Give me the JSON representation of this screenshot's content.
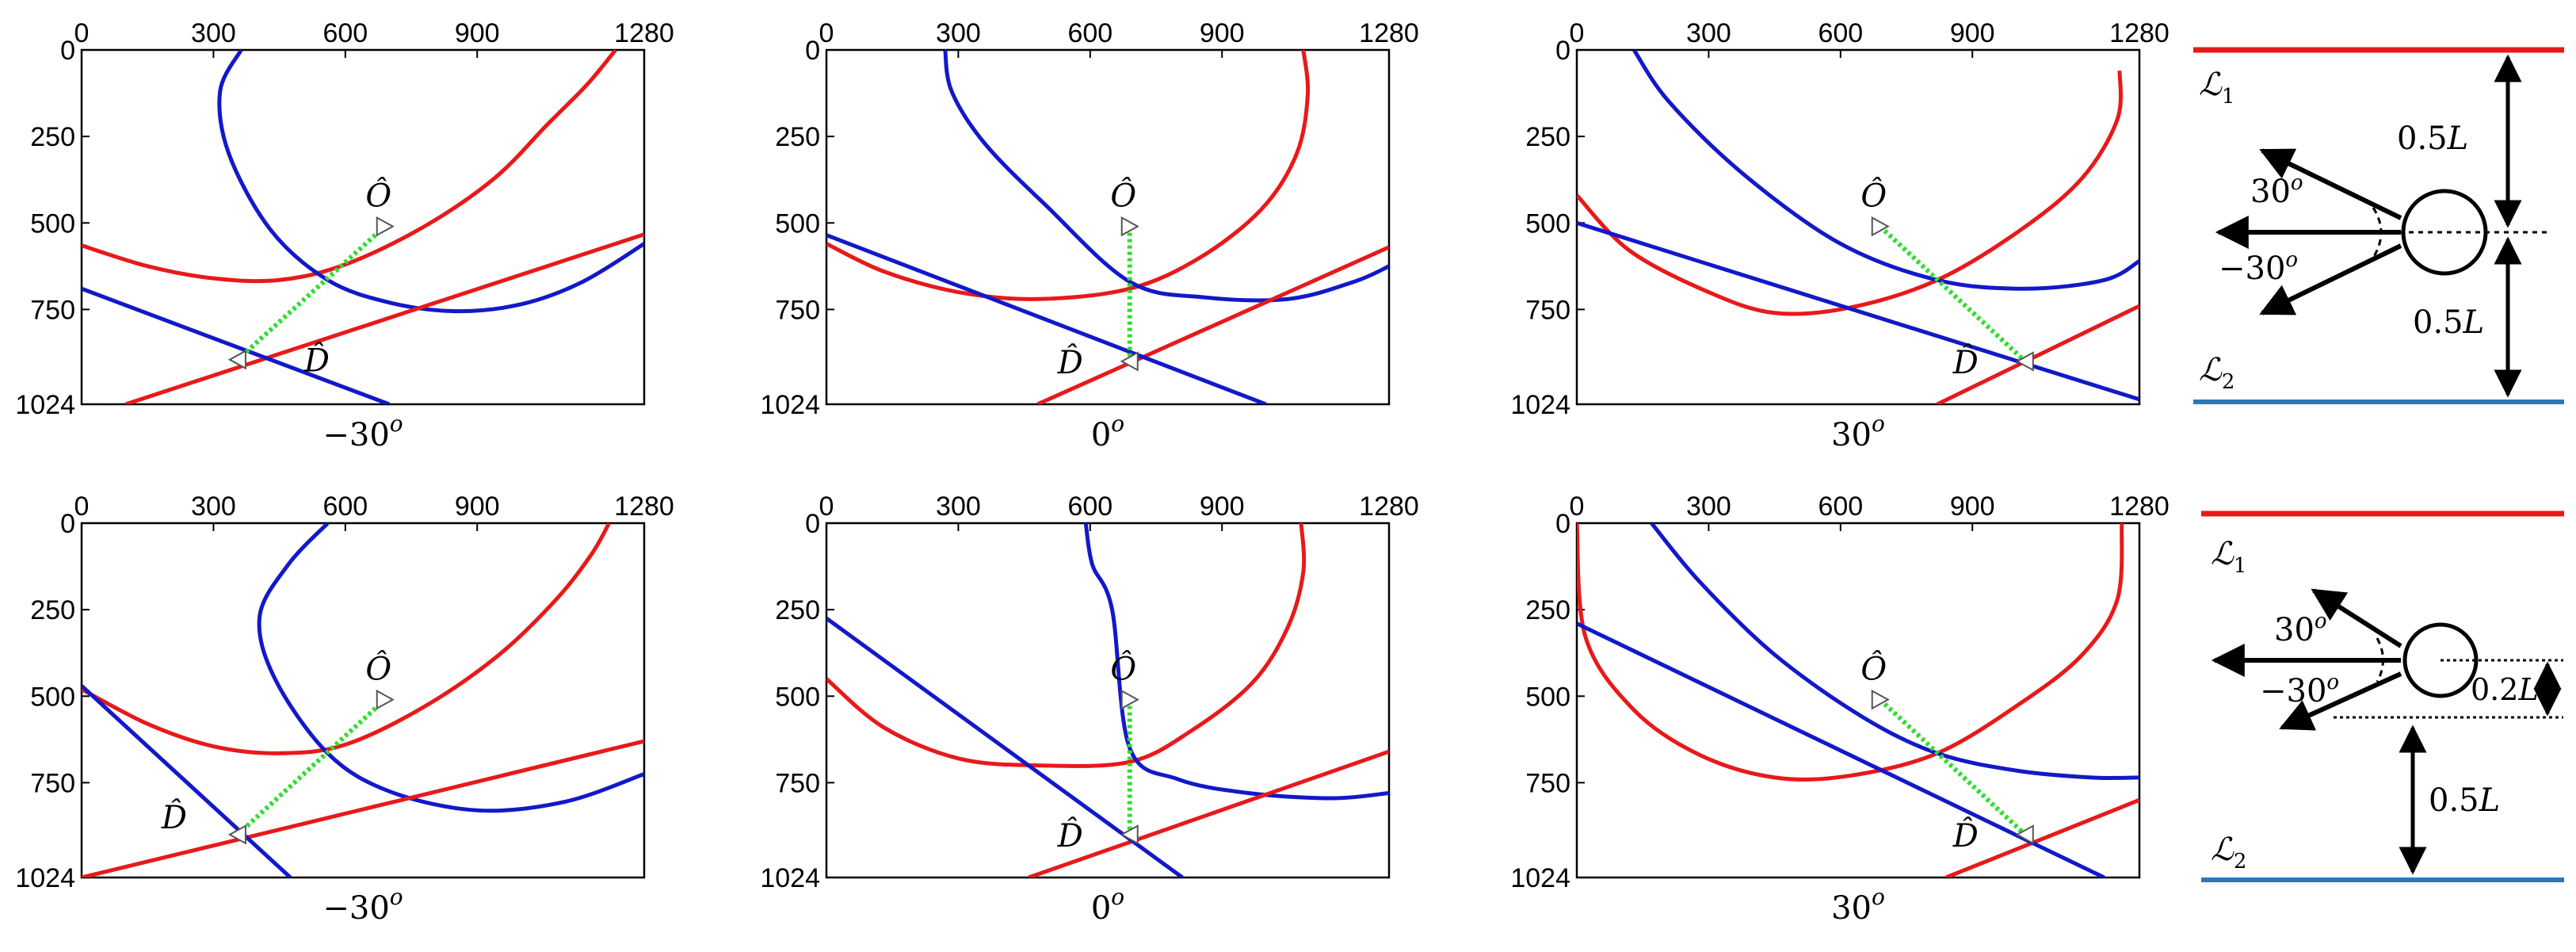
{
  "figure": {
    "x_ticks": [
      "0",
      "300",
      "600",
      "900",
      "1280"
    ],
    "y_ticks": [
      "0",
      "250",
      "500",
      "750",
      "1024"
    ],
    "o_label": "Ô",
    "d_label": "D̂",
    "colors": {
      "red": "#e8191a",
      "blue": "#1219c8",
      "green": "#2ede2e",
      "blue_line": "#2f78b4"
    },
    "plots": [
      {
        "caption_num": "−30",
        "caption_sup": "o",
        "o": [
          690,
          510
        ],
        "d": [
          355,
          895
        ],
        "mid": [
          570,
          665
        ],
        "red_curve": [
          [
            0,
            565
          ],
          [
            150,
            625
          ],
          [
            300,
            660
          ],
          [
            450,
            665
          ],
          [
            600,
            620
          ],
          [
            780,
            510
          ],
          [
            940,
            370
          ],
          [
            1060,
            215
          ],
          [
            1150,
            100
          ],
          [
            1215,
            0
          ]
        ],
        "red_line": [
          [
            100,
            1024
          ],
          [
            1280,
            533
          ]
        ],
        "blue_curve": [
          [
            363,
            0
          ],
          [
            315,
            120
          ],
          [
            335,
            300
          ],
          [
            430,
            520
          ],
          [
            560,
            665
          ],
          [
            700,
            730
          ],
          [
            850,
            755
          ],
          [
            1000,
            735
          ],
          [
            1140,
            670
          ],
          [
            1280,
            560
          ]
        ],
        "blue_line": [
          [
            0,
            690
          ],
          [
            700,
            1024
          ]
        ]
      },
      {
        "caption_num": "0",
        "caption_sup": "o",
        "o": [
          690,
          510
        ],
        "d": [
          690,
          900
        ],
        "mid": [
          690,
          690
        ],
        "red_curve": [
          [
            0,
            560
          ],
          [
            130,
            640
          ],
          [
            300,
            700
          ],
          [
            480,
            720
          ],
          [
            690,
            690
          ],
          [
            850,
            600
          ],
          [
            990,
            460
          ],
          [
            1070,
            300
          ],
          [
            1095,
            130
          ],
          [
            1085,
            0
          ]
        ],
        "red_line": [
          [
            480,
            1024
          ],
          [
            1280,
            570
          ]
        ],
        "blue_curve": [
          [
            270,
            0
          ],
          [
            285,
            120
          ],
          [
            360,
            270
          ],
          [
            500,
            450
          ],
          [
            690,
            670
          ],
          [
            860,
            715
          ],
          [
            1050,
            720
          ],
          [
            1200,
            670
          ],
          [
            1280,
            625
          ]
        ],
        "blue_line": [
          [
            0,
            535
          ],
          [
            1000,
            1024
          ]
        ]
      },
      {
        "caption_num": "30",
        "caption_sup": "o",
        "o": [
          690,
          510
        ],
        "d": [
          1020,
          900
        ],
        "mid": [
          820,
          665
        ],
        "red_curve": [
          [
            0,
            420
          ],
          [
            120,
            580
          ],
          [
            300,
            700
          ],
          [
            450,
            760
          ],
          [
            620,
            745
          ],
          [
            820,
            665
          ],
          [
            1010,
            520
          ],
          [
            1150,
            370
          ],
          [
            1230,
            200
          ],
          [
            1235,
            60
          ]
        ],
        "red_line": [
          [
            820,
            1024
          ],
          [
            1280,
            740
          ]
        ],
        "blue_curve": [
          [
            130,
            0
          ],
          [
            210,
            150
          ],
          [
            380,
            360
          ],
          [
            600,
            560
          ],
          [
            820,
            665
          ],
          [
            1020,
            690
          ],
          [
            1200,
            665
          ],
          [
            1280,
            610
          ]
        ],
        "blue_line": [
          [
            0,
            500
          ],
          [
            1280,
            1010
          ]
        ]
      },
      {
        "caption_num": "−30",
        "caption_sup": "o",
        "o": [
          690,
          510
        ],
        "d": [
          355,
          900
        ],
        "mid": [
          570,
          665
        ],
        "red_curve": [
          [
            0,
            480
          ],
          [
            150,
            580
          ],
          [
            300,
            645
          ],
          [
            450,
            665
          ],
          [
            600,
            640
          ],
          [
            780,
            530
          ],
          [
            950,
            380
          ],
          [
            1080,
            220
          ],
          [
            1160,
            90
          ],
          [
            1200,
            0
          ]
        ],
        "red_line": [
          [
            0,
            1024
          ],
          [
            1280,
            630
          ]
        ],
        "blue_curve": [
          [
            560,
            0
          ],
          [
            470,
            120
          ],
          [
            405,
            270
          ],
          [
            440,
            450
          ],
          [
            560,
            665
          ],
          [
            700,
            775
          ],
          [
            900,
            830
          ],
          [
            1100,
            805
          ],
          [
            1280,
            725
          ]
        ],
        "blue_line": [
          [
            0,
            470
          ],
          [
            475,
            1024
          ]
        ]
      },
      {
        "caption_num": "0",
        "caption_sup": "o",
        "o": [
          690,
          510
        ],
        "d": [
          690,
          900
        ],
        "mid": [
          690,
          690
        ],
        "red_curve": [
          [
            0,
            450
          ],
          [
            130,
            590
          ],
          [
            300,
            680
          ],
          [
            480,
            700
          ],
          [
            690,
            690
          ],
          [
            830,
            600
          ],
          [
            970,
            460
          ],
          [
            1050,
            300
          ],
          [
            1085,
            140
          ],
          [
            1080,
            0
          ]
        ],
        "red_line": [
          [
            460,
            1024
          ],
          [
            1280,
            660
          ]
        ],
        "blue_curve": [
          [
            590,
            0
          ],
          [
            605,
            120
          ],
          [
            650,
            250
          ],
          [
            690,
            650
          ],
          [
            800,
            740
          ],
          [
            960,
            780
          ],
          [
            1150,
            795
          ],
          [
            1280,
            780
          ]
        ],
        "blue_line": [
          [
            0,
            275
          ],
          [
            810,
            1024
          ]
        ]
      },
      {
        "caption_num": "30",
        "caption_sup": "o",
        "o": [
          690,
          510
        ],
        "d": [
          1020,
          900
        ],
        "mid": [
          820,
          665
        ],
        "red_curve": [
          [
            0,
            0
          ],
          [
            20,
            330
          ],
          [
            130,
            540
          ],
          [
            280,
            670
          ],
          [
            450,
            735
          ],
          [
            620,
            730
          ],
          [
            820,
            665
          ],
          [
            1010,
            520
          ],
          [
            1150,
            380
          ],
          [
            1230,
            220
          ],
          [
            1240,
            0
          ]
        ],
        "red_line": [
          [
            840,
            1024
          ],
          [
            1280,
            800
          ]
        ],
        "blue_curve": [
          [
            170,
            0
          ],
          [
            280,
            170
          ],
          [
            450,
            380
          ],
          [
            650,
            560
          ],
          [
            820,
            665
          ],
          [
            1000,
            715
          ],
          [
            1170,
            735
          ],
          [
            1280,
            735
          ]
        ],
        "blue_line": [
          [
            0,
            290
          ],
          [
            1200,
            1024
          ]
        ]
      }
    ]
  },
  "schematics": [
    {
      "l1": "ℒ",
      "l1_sub": "1",
      "l2": "ℒ",
      "l2_sub": "2",
      "angle_pos": "30",
      "angle_neg": "−30",
      "angle_sup": "o",
      "dist_top": "0.5",
      "dist_bottom": "0.5",
      "dist_unit": "L"
    },
    {
      "l1": "ℒ",
      "l1_sub": "1",
      "l2": "ℒ",
      "l2_sub": "2",
      "angle_pos": "30",
      "angle_neg": "−30",
      "angle_sup": "o",
      "dist_gap": "0.2",
      "dist_bottom": "0.5",
      "dist_unit": "L"
    }
  ]
}
